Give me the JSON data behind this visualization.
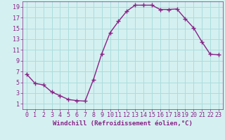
{
  "x": [
    0,
    1,
    2,
    3,
    4,
    5,
    6,
    7,
    8,
    9,
    10,
    11,
    12,
    13,
    14,
    15,
    16,
    17,
    18,
    19,
    20,
    21,
    22,
    23
  ],
  "y": [
    6.5,
    4.8,
    4.5,
    3.2,
    2.5,
    1.8,
    1.6,
    1.5,
    5.5,
    10.3,
    14.2,
    16.3,
    18.2,
    19.3,
    19.3,
    19.3,
    18.5,
    18.5,
    18.6,
    16.8,
    15.1,
    12.5,
    10.2,
    10.1
  ],
  "line_color": "#882288",
  "marker": "+",
  "marker_size": 4,
  "marker_linewidth": 1.0,
  "line_width": 1.0,
  "bg_color": "#d5f0f0",
  "grid_color": "#aadddd",
  "tick_color": "#882288",
  "label_color": "#882288",
  "xlabel": "Windchill (Refroidissement éolien,°C)",
  "xlim": [
    -0.5,
    23.5
  ],
  "ylim": [
    0,
    20
  ],
  "yticks": [
    1,
    3,
    5,
    7,
    9,
    11,
    13,
    15,
    17,
    19
  ],
  "xticks": [
    0,
    1,
    2,
    3,
    4,
    5,
    6,
    7,
    8,
    9,
    10,
    11,
    12,
    13,
    14,
    15,
    16,
    17,
    18,
    19,
    20,
    21,
    22,
    23
  ],
  "tick_fontsize": 6,
  "xlabel_fontsize": 6.5
}
